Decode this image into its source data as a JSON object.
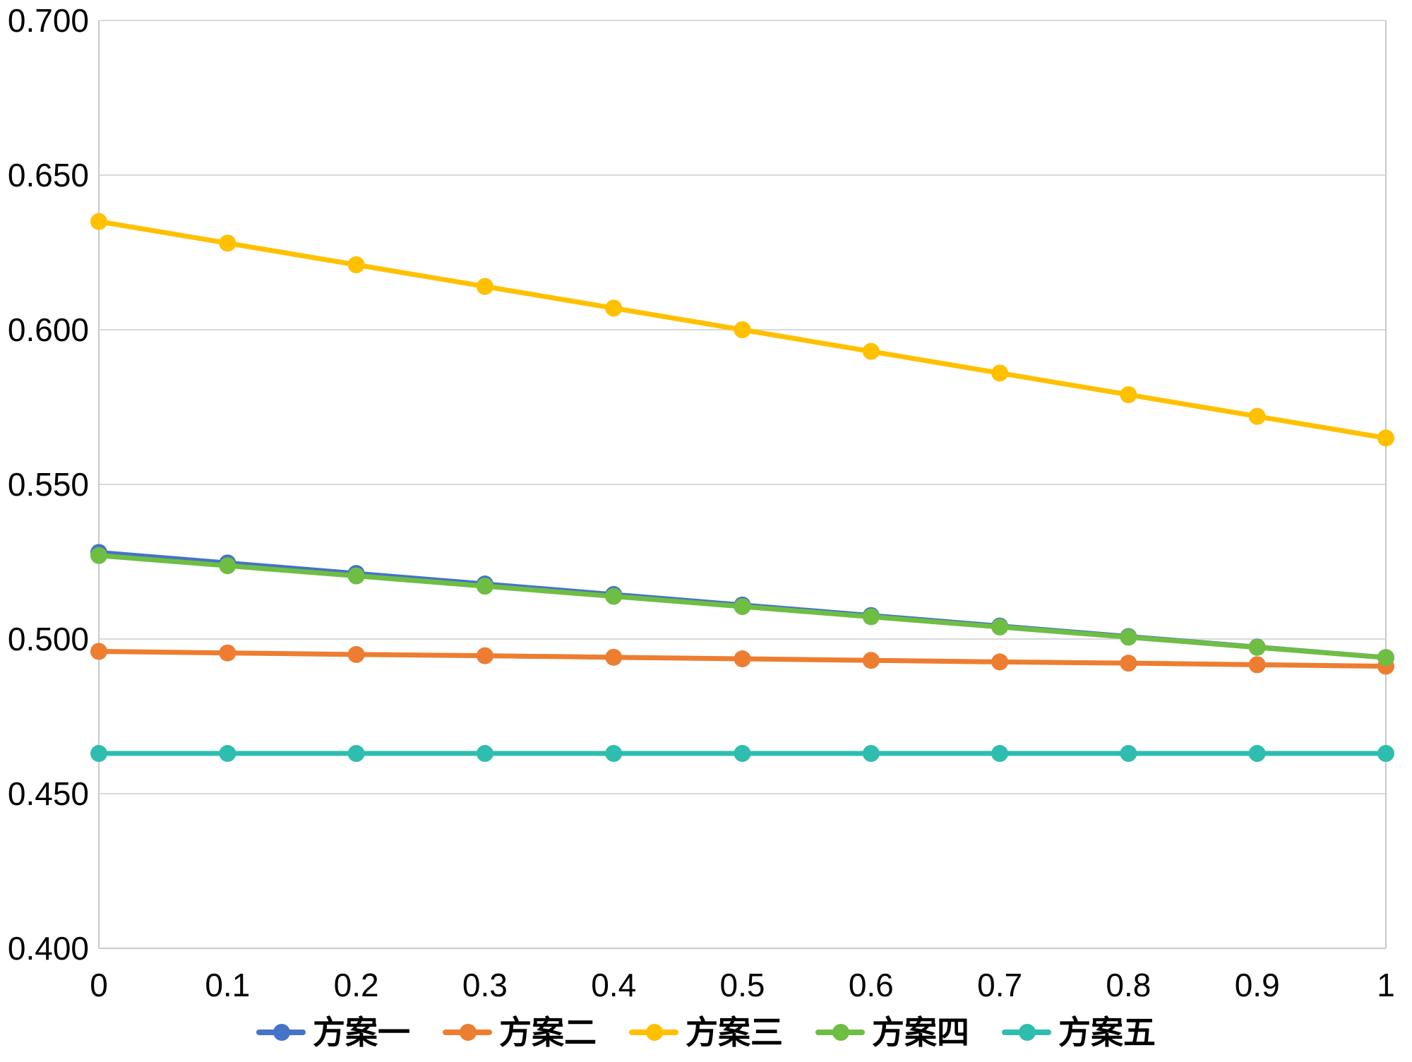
{
  "chart_data": {
    "type": "line",
    "title": "",
    "xlabel": "",
    "ylabel": "",
    "xlim": [
      0,
      1
    ],
    "ylim": [
      0.4,
      0.7
    ],
    "grid": "horizontal",
    "legend_position": "bottom",
    "xticks": [
      0,
      0.1,
      0.2,
      0.3,
      0.4,
      0.5,
      0.6,
      0.7,
      0.8,
      0.9,
      1
    ],
    "xticklabels": [
      "0",
      "0.1",
      "0.2",
      "0.3",
      "0.4",
      "0.5",
      "0.6",
      "0.7",
      "0.8",
      "0.9",
      "1"
    ],
    "yticks": [
      0.4,
      0.45,
      0.5,
      0.55,
      0.6,
      0.65,
      0.7
    ],
    "yticklabels": [
      "0.400",
      "0.450",
      "0.500",
      "0.550",
      "0.600",
      "0.650",
      "0.700"
    ],
    "x": [
      0,
      0.1,
      0.2,
      0.3,
      0.4,
      0.5,
      0.6,
      0.7,
      0.8,
      0.9,
      1
    ],
    "series": [
      {
        "name": "方案一",
        "color": "#4573C7",
        "values": [
          0.528,
          0.5246,
          0.5212,
          0.5178,
          0.5144,
          0.511,
          0.5076,
          0.5042,
          0.5008,
          0.4974,
          0.494
        ]
      },
      {
        "name": "方案二",
        "color": "#ED7D31",
        "values": [
          0.496,
          0.4955,
          0.495,
          0.4946,
          0.4941,
          0.4936,
          0.4931,
          0.4926,
          0.4922,
          0.4917,
          0.4912
        ]
      },
      {
        "name": "方案三",
        "color": "#FFC000",
        "values": [
          0.635,
          0.628,
          0.621,
          0.614,
          0.607,
          0.6,
          0.593,
          0.586,
          0.579,
          0.572,
          0.565
        ]
      },
      {
        "name": "方案四",
        "color": "#6FBE44",
        "values": [
          0.527,
          0.5237,
          0.5204,
          0.5171,
          0.5138,
          0.5105,
          0.5072,
          0.5039,
          0.5006,
          0.4973,
          0.494
        ]
      },
      {
        "name": "方案五",
        "color": "#2EBDAF",
        "values": [
          0.463,
          0.463,
          0.463,
          0.463,
          0.463,
          0.463,
          0.463,
          0.463,
          0.463,
          0.463,
          0.463
        ]
      }
    ],
    "style": {
      "grid_color": "#D9D9D9",
      "axis_color": "#C9C9C9",
      "text_color": "#000000",
      "background": "#FFFFFF"
    }
  }
}
